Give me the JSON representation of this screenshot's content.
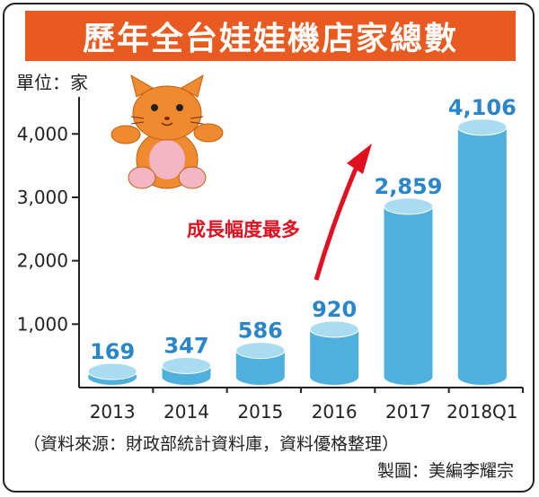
{
  "title": "歷年全台娃娃機店家總數",
  "unit_label": "單位：家",
  "annotation": "成長幅度最多",
  "source": "（資料來源：財政部統計資料庫，資料優格整理）",
  "credit": "製圖：美編李耀宗",
  "colors": {
    "title_bg": "#e85a20",
    "bar": "#4fb0dd",
    "bar_top": "#a9dcf0",
    "value_label": "#2a86c8",
    "arrow": "#e01020"
  },
  "chart_data": {
    "type": "bar",
    "categories": [
      "2013",
      "2014",
      "2015",
      "2016",
      "2017",
      "2018Q1"
    ],
    "values": [
      169,
      347,
      586,
      920,
      2859,
      4106
    ],
    "value_labels": [
      "169",
      "347",
      "586",
      "920",
      "2,859",
      "4,106"
    ],
    "ylim": [
      0,
      4400
    ],
    "yticks": [
      1000,
      2000,
      3000,
      4000
    ],
    "ytick_labels": [
      "1,000",
      "2,000",
      "3,000",
      "4,000"
    ],
    "grid": false,
    "legend": "none"
  }
}
